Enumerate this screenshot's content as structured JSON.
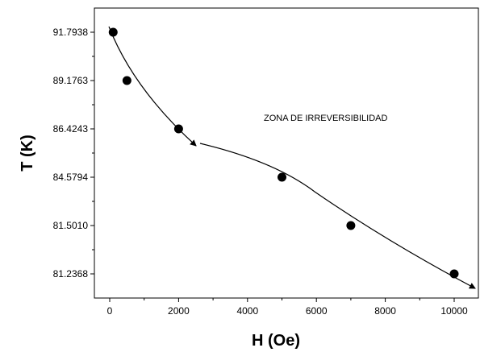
{
  "chart_data": {
    "type": "scatter",
    "xlabel": "H (Oe)",
    "ylabel": "T (K)",
    "xlim": [
      -500,
      10700
    ],
    "x_ticks": [
      0,
      2000,
      4000,
      6000,
      8000,
      10000
    ],
    "y_tick_labels": [
      "91.7938",
      "89.1763",
      "86.4243",
      "84.5794",
      "81.5010",
      "81.2368"
    ],
    "y_scale": "categorical (labels evenly spaced, not proportional)",
    "annotation": "ZONA DE IRREVERSIBILIDAD",
    "points": [
      {
        "x": 100,
        "y": 91.7938
      },
      {
        "x": 500,
        "y": 89.1763
      },
      {
        "x": 2000,
        "y": 86.4243
      },
      {
        "x": 5000,
        "y": 84.5794
      },
      {
        "x": 7000,
        "y": 81.501
      },
      {
        "x": 10000,
        "y": 81.2368
      }
    ],
    "grid": false,
    "legend": "none"
  }
}
